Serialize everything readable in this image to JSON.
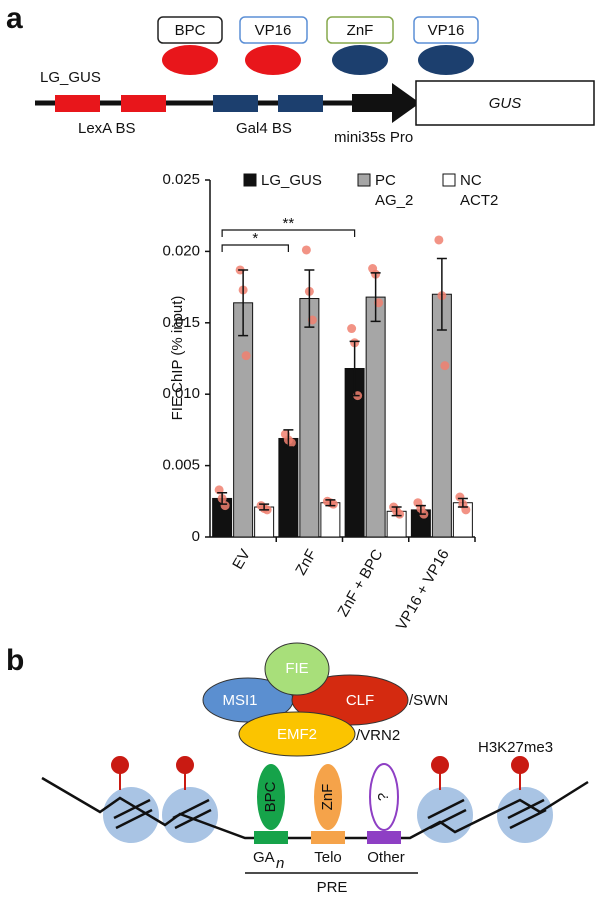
{
  "panel_a": {
    "label": "a",
    "proteins": [
      "BPC",
      "VP16",
      "ZnF",
      "VP16"
    ],
    "construct": "LG_GUS",
    "lexa": "LexA BS",
    "gal4": "Gal4 BS",
    "promoter": "mini35s Pro",
    "reporter": "GUS"
  },
  "chart_data": {
    "type": "bar",
    "y_label": "FIE ChIP (% input)",
    "categories": [
      "EV",
      "ZnF",
      "ZnF + BPC",
      "VP16 + VP16"
    ],
    "ylim": [
      0,
      0.025
    ],
    "yticks": [
      0,
      {
        "value": 0.005,
        "label": "0.005"
      },
      {
        "value": 0.01,
        "label": "0.010"
      },
      {
        "value": 0.015,
        "label": "0.015"
      },
      {
        "value": 0.02,
        "label": "0.020"
      },
      {
        "value": 0.025,
        "label": "0.025"
      }
    ],
    "point_color": "#f08070",
    "series": [
      {
        "name": "LG_GUS",
        "color": "#111111",
        "values": [
          0.0027,
          0.0069,
          0.0118,
          0.0019
        ],
        "errors": [
          0.0004,
          0.0006,
          0.0019,
          0.0003
        ],
        "points": [
          [
            0.0033,
            0.0027,
            0.0022
          ],
          [
            0.0072,
            0.0068,
            0.0066
          ],
          [
            0.0146,
            0.0136,
            0.0099
          ],
          [
            0.0024,
            0.002,
            0.0016
          ]
        ]
      },
      {
        "name": "PC AG_2",
        "color": "#a6a6a6",
        "values": [
          0.0164,
          0.0167,
          0.0168,
          0.017
        ],
        "errors": [
          0.0023,
          0.002,
          0.0017,
          0.0025
        ],
        "points": [
          [
            0.0187,
            0.0173,
            0.0127
          ],
          [
            0.0201,
            0.0172,
            0.0152
          ],
          [
            0.0188,
            0.0184,
            0.0164
          ],
          [
            0.0208,
            0.0169,
            0.012
          ]
        ]
      },
      {
        "name": "NC ACT2",
        "color": "#ffffff",
        "values": [
          0.0021,
          0.0024,
          0.0018,
          0.0024
        ],
        "errors": [
          0.0002,
          0.0002,
          0.0003,
          0.0003
        ],
        "points": [
          [
            0.0022,
            0.002,
            0.0019
          ],
          [
            0.0025,
            0.0024,
            0.0023
          ],
          [
            0.0021,
            0.0018,
            0.0016
          ],
          [
            0.0028,
            0.0023,
            0.0019
          ]
        ]
      }
    ],
    "annotations": [
      {
        "text": "*",
        "from": 0,
        "to": 1
      },
      {
        "text": "**",
        "from": 0,
        "to": 2
      }
    ]
  },
  "panel_b": {
    "label": "b",
    "complex": [
      "FIE",
      "MSI1",
      "CLF",
      "EMF2"
    ],
    "clf_alt": "/SWN",
    "emf2_alt": "/VRN2",
    "mark": "H3K27me3",
    "factors": [
      "BPC",
      "ZnF",
      "?"
    ],
    "sites": {
      "ga": "GA",
      "ga_sub": "n",
      "telo": "Telo",
      "other": "Other"
    },
    "region": "PRE"
  }
}
